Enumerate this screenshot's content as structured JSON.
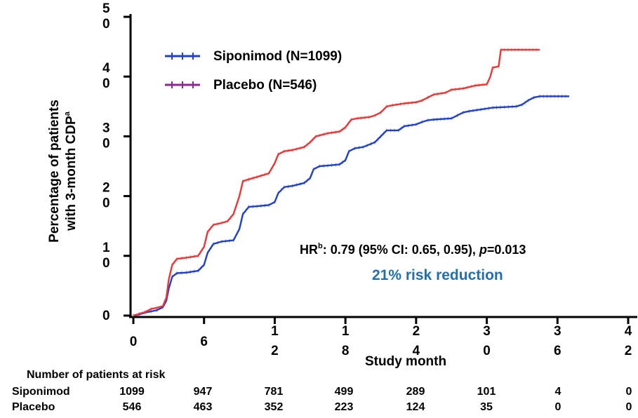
{
  "chart_data": {
    "type": "line",
    "ylabel": [
      "Percentage of patients",
      "with 3-month CDP"
    ],
    "ylabel_sup": "a",
    "xlabel": "Study month",
    "xlim": [
      0,
      42
    ],
    "ylim": [
      0,
      50
    ],
    "x_ticks": [
      {
        "value": 0,
        "lines": [
          "0"
        ]
      },
      {
        "value": 6,
        "lines": [
          "6"
        ]
      },
      {
        "value": 12,
        "lines": [
          "1",
          "2"
        ]
      },
      {
        "value": 18,
        "lines": [
          "1",
          "8"
        ]
      },
      {
        "value": 24,
        "lines": [
          "2",
          "4"
        ]
      },
      {
        "value": 30,
        "lines": [
          "3",
          "0"
        ]
      },
      {
        "value": 36,
        "lines": [
          "3",
          "6"
        ]
      },
      {
        "value": 42,
        "lines": [
          "4",
          "2"
        ]
      }
    ],
    "y_ticks": [
      {
        "value": 0,
        "lines": [
          "0"
        ]
      },
      {
        "value": 10,
        "lines": [
          "1",
          "0"
        ]
      },
      {
        "value": 20,
        "lines": [
          "2",
          "0"
        ]
      },
      {
        "value": 30,
        "lines": [
          "3",
          "0"
        ]
      },
      {
        "value": 40,
        "lines": [
          "4",
          "0"
        ]
      },
      {
        "value": 50,
        "lines": [
          "5",
          "0"
        ]
      }
    ],
    "series": [
      {
        "name": "Siponimod (N=1099)",
        "color": "#1f3fcf",
        "points": [
          [
            0,
            0
          ],
          [
            0.5,
            0.2
          ],
          [
            1,
            0.5
          ],
          [
            1.5,
            0.7
          ],
          [
            2,
            0.9
          ],
          [
            2.5,
            1.4
          ],
          [
            2.8,
            2.5
          ],
          [
            3,
            4.5
          ],
          [
            3.3,
            6.5
          ],
          [
            3.7,
            7.1
          ],
          [
            4.5,
            7.2
          ],
          [
            5.5,
            7.5
          ],
          [
            6,
            8.5
          ],
          [
            6.3,
            10.5
          ],
          [
            6.8,
            12
          ],
          [
            7.5,
            12.4
          ],
          [
            8.5,
            12.6
          ],
          [
            9,
            14.5
          ],
          [
            9.3,
            17
          ],
          [
            9.8,
            18.2
          ],
          [
            10.5,
            18.3
          ],
          [
            11.5,
            18.5
          ],
          [
            12,
            19
          ],
          [
            12.3,
            20.5
          ],
          [
            12.8,
            21.5
          ],
          [
            13.5,
            21.7
          ],
          [
            14.5,
            22.2
          ],
          [
            15,
            23
          ],
          [
            15.3,
            24.5
          ],
          [
            15.8,
            25
          ],
          [
            16.5,
            25.1
          ],
          [
            17.5,
            25.3
          ],
          [
            18,
            26
          ],
          [
            18.3,
            27.5
          ],
          [
            18.8,
            28
          ],
          [
            19.5,
            28.2
          ],
          [
            20.5,
            29
          ],
          [
            21,
            30
          ],
          [
            21.5,
            31
          ],
          [
            22.5,
            31
          ],
          [
            23,
            31.7
          ],
          [
            24,
            32
          ],
          [
            24.5,
            32.4
          ],
          [
            25,
            32.7
          ],
          [
            25.5,
            32.8
          ],
          [
            27,
            33
          ],
          [
            27.5,
            33.5
          ],
          [
            28,
            34
          ],
          [
            28.5,
            34.2
          ],
          [
            29.5,
            34.5
          ],
          [
            30.5,
            34.8
          ],
          [
            31.5,
            34.9
          ],
          [
            32.5,
            35
          ],
          [
            33,
            35.3
          ],
          [
            33.5,
            36
          ],
          [
            34,
            36.5
          ],
          [
            34.5,
            36.7
          ],
          [
            37,
            36.7
          ]
        ]
      },
      {
        "name": "Placebo (N=546)",
        "color": "#8b2a8e",
        "line_color": "#ee3535",
        "points": [
          [
            0,
            0
          ],
          [
            0.5,
            0.3
          ],
          [
            1,
            0.6
          ],
          [
            1.5,
            1.1
          ],
          [
            2,
            1.3
          ],
          [
            2.5,
            1.6
          ],
          [
            2.8,
            3
          ],
          [
            3,
            6
          ],
          [
            3.3,
            8.5
          ],
          [
            3.7,
            9.5
          ],
          [
            4.5,
            9.7
          ],
          [
            5.5,
            10
          ],
          [
            6,
            11.5
          ],
          [
            6.3,
            14
          ],
          [
            6.8,
            15.2
          ],
          [
            7.5,
            15.5
          ],
          [
            8,
            15.8
          ],
          [
            8.5,
            17
          ],
          [
            9,
            20
          ],
          [
            9.3,
            22.5
          ],
          [
            9.8,
            22.8
          ],
          [
            10.5,
            23.2
          ],
          [
            11.5,
            23.8
          ],
          [
            12,
            25.5
          ],
          [
            12.3,
            27
          ],
          [
            12.8,
            27.5
          ],
          [
            13.5,
            27.7
          ],
          [
            14.5,
            28.2
          ],
          [
            15,
            29
          ],
          [
            15.5,
            30
          ],
          [
            16.5,
            30.5
          ],
          [
            17.5,
            30.8
          ],
          [
            18,
            31.5
          ],
          [
            18.5,
            32.8
          ],
          [
            19,
            33
          ],
          [
            20,
            33.2
          ],
          [
            20.5,
            33.5
          ],
          [
            21,
            34
          ],
          [
            21.5,
            35
          ],
          [
            22,
            35.2
          ],
          [
            23,
            35.5
          ],
          [
            24,
            35.7
          ],
          [
            24.5,
            36
          ],
          [
            25,
            36.5
          ],
          [
            25.5,
            37
          ],
          [
            26.5,
            37.3
          ],
          [
            27,
            37.8
          ],
          [
            28,
            38
          ],
          [
            29,
            38.5
          ],
          [
            30,
            38.7
          ],
          [
            30.3,
            40
          ],
          [
            30.5,
            41.5
          ],
          [
            31,
            41.7
          ],
          [
            31.2,
            44.5
          ],
          [
            34.5,
            44.5
          ]
        ]
      }
    ],
    "legend": {
      "placement": "top-left"
    },
    "annotations": {
      "hr_prefix": "HR",
      "hr_sup": "b",
      "hr_mid": ": 0.79 (95% CI: 0.65, 0.95), ",
      "hr_p": "p",
      "hr_end": "=0.013",
      "risk_reduction": "21% risk reduction",
      "risk_reduction_color": "#1f6fb2"
    }
  },
  "risk_table": {
    "title": "Number of patients at risk",
    "rows": [
      {
        "label": "Siponimod",
        "values": [
          "1099",
          "947",
          "781",
          "499",
          "289",
          "101",
          "4",
          "0"
        ]
      },
      {
        "label": "Placebo",
        "values": [
          "546",
          "463",
          "352",
          "223",
          "124",
          "35",
          "0",
          "0"
        ]
      }
    ]
  }
}
